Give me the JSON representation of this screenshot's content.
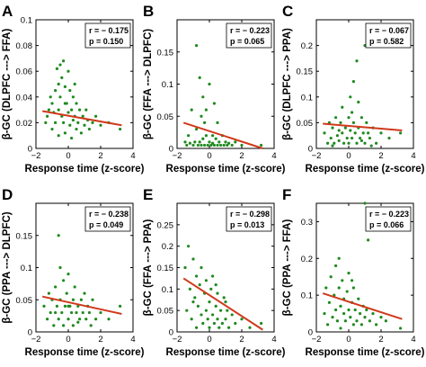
{
  "colors": {
    "points": "#1f8a1f",
    "fit_line": "#d0391c",
    "axes": "#000000"
  },
  "chart_data": [
    {
      "type": "scatter",
      "panel": "A",
      "xlabel": "Response time (z-score)",
      "ylabel": "β-GC (DLPFC ---> FFA)",
      "xlim": [
        -2,
        4
      ],
      "ylim": [
        0,
        0.1
      ],
      "xticks": [
        -2,
        0,
        2,
        4
      ],
      "yticks": [
        0,
        0.02,
        0.04,
        0.06,
        0.08,
        0.1
      ],
      "stats": {
        "r": "r = − 0.175",
        "p": "p = 0.150"
      },
      "fit": {
        "x": [
          -1.6,
          3.3
        ],
        "y": [
          0.029,
          0.018
        ]
      },
      "points": [
        [
          -1.4,
          0.02
        ],
        [
          -1.3,
          0.025
        ],
        [
          -1.2,
          0.03
        ],
        [
          -1.1,
          0.04
        ],
        [
          -1.0,
          0.035
        ],
        [
          -1.0,
          0.015
        ],
        [
          -0.9,
          0.028
        ],
        [
          -0.8,
          0.045
        ],
        [
          -0.8,
          0.02
        ],
        [
          -0.7,
          0.062
        ],
        [
          -0.6,
          0.05
        ],
        [
          -0.6,
          0.03
        ],
        [
          -0.5,
          0.065
        ],
        [
          -0.5,
          0.04
        ],
        [
          -0.4,
          0.055
        ],
        [
          -0.4,
          0.025
        ],
        [
          -0.3,
          0.068
        ],
        [
          -0.3,
          0.02
        ],
        [
          -0.2,
          0.048
        ],
        [
          -0.2,
          0.012
        ],
        [
          -0.1,
          0.035
        ],
        [
          0.0,
          0.06
        ],
        [
          0.0,
          0.028
        ],
        [
          0.1,
          0.045
        ],
        [
          0.1,
          0.018
        ],
        [
          0.2,
          0.03
        ],
        [
          0.2,
          0.008
        ],
        [
          0.3,
          0.04
        ],
        [
          0.3,
          0.022
        ],
        [
          0.4,
          0.025
        ],
        [
          0.5,
          0.015
        ],
        [
          0.5,
          0.035
        ],
        [
          0.6,
          0.02
        ],
        [
          0.7,
          0.03
        ],
        [
          0.8,
          0.012
        ],
        [
          0.9,
          0.025
        ],
        [
          1.0,
          0.018
        ],
        [
          1.1,
          0.03
        ],
        [
          1.2,
          0.022
        ],
        [
          1.3,
          0.015
        ],
        [
          1.5,
          0.02
        ],
        [
          1.7,
          0.025
        ],
        [
          2.0,
          0.018
        ],
        [
          2.5,
          0.02
        ],
        [
          3.2,
          0.015
        ],
        [
          -0.6,
          0.01
        ],
        [
          -0.2,
          0.035
        ],
        [
          0.4,
          0.05
        ]
      ]
    },
    {
      "type": "scatter",
      "panel": "B",
      "xlabel": "Response time (z-score)",
      "ylabel": "β-GC (FFA ---> DLPFC)",
      "xlim": [
        -2,
        4
      ],
      "ylim": [
        0,
        0.2
      ],
      "xticks": [
        -2,
        0,
        2,
        4
      ],
      "yticks": [
        0,
        0.05,
        0.1,
        0.15
      ],
      "stats": {
        "r": "r = − 0.223",
        "p": "p = 0.065"
      },
      "fit": {
        "x": [
          -1.6,
          3.3
        ],
        "y": [
          0.04,
          0.0
        ]
      },
      "points": [
        [
          -1.5,
          0.01
        ],
        [
          -1.4,
          0.005
        ],
        [
          -1.3,
          0.02
        ],
        [
          -1.2,
          0.008
        ],
        [
          -1.1,
          0.06
        ],
        [
          -1.0,
          0.005
        ],
        [
          -0.9,
          0.01
        ],
        [
          -0.8,
          0.16
        ],
        [
          -0.8,
          0.03
        ],
        [
          -0.7,
          0.005
        ],
        [
          -0.6,
          0.11
        ],
        [
          -0.6,
          0.01
        ],
        [
          -0.5,
          0.05
        ],
        [
          -0.5,
          0.005
        ],
        [
          -0.4,
          0.08
        ],
        [
          -0.4,
          0.015
        ],
        [
          -0.3,
          0.005
        ],
        [
          -0.2,
          0.02
        ],
        [
          -0.2,
          0.06
        ],
        [
          -0.1,
          0.005
        ],
        [
          0.0,
          0.01
        ],
        [
          0.0,
          0.1
        ],
        [
          0.1,
          0.005
        ],
        [
          0.2,
          0.02
        ],
        [
          0.2,
          0.008
        ],
        [
          0.3,
          0.005
        ],
        [
          0.4,
          0.015
        ],
        [
          0.5,
          0.005
        ],
        [
          0.5,
          0.04
        ],
        [
          0.6,
          0.01
        ],
        [
          0.7,
          0.005
        ],
        [
          0.8,
          0.02
        ],
        [
          0.9,
          0.005
        ],
        [
          1.0,
          0.01
        ],
        [
          1.1,
          0.005
        ],
        [
          1.2,
          0.008
        ],
        [
          1.4,
          0.005
        ],
        [
          1.6,
          0.01
        ],
        [
          2.0,
          0.005
        ],
        [
          3.2,
          0.005
        ],
        [
          -0.3,
          0.04
        ],
        [
          0.3,
          0.07
        ]
      ]
    },
    {
      "type": "scatter",
      "panel": "C",
      "xlabel": "Response time (z-score)",
      "ylabel": "β-GC (DLPFC ---> PPA)",
      "xlim": [
        -2,
        4
      ],
      "ylim": [
        0,
        0.25
      ],
      "xticks": [
        -2,
        0,
        2,
        4
      ],
      "yticks": [
        0,
        0.05,
        0.1,
        0.15,
        0.2
      ],
      "stats": {
        "r": "r = − 0.067",
        "p": "p = 0.582"
      },
      "fit": {
        "x": [
          -1.6,
          3.3
        ],
        "y": [
          0.048,
          0.035
        ]
      },
      "points": [
        [
          -1.5,
          0.03
        ],
        [
          -1.3,
          0.01
        ],
        [
          -1.2,
          0.05
        ],
        [
          -1.1,
          0.02
        ],
        [
          -1.0,
          0.04
        ],
        [
          -0.9,
          0.01
        ],
        [
          -0.8,
          0.06
        ],
        [
          -0.7,
          0.025
        ],
        [
          -0.6,
          0.015
        ],
        [
          -0.5,
          0.05
        ],
        [
          -0.4,
          0.03
        ],
        [
          -0.4,
          0.08
        ],
        [
          -0.3,
          0.01
        ],
        [
          -0.2,
          0.04
        ],
        [
          -0.1,
          0.02
        ],
        [
          0.0,
          0.06
        ],
        [
          0.0,
          0.01
        ],
        [
          0.1,
          0.035
        ],
        [
          0.1,
          0.1
        ],
        [
          0.2,
          0.02
        ],
        [
          0.3,
          0.05
        ],
        [
          0.3,
          0.13
        ],
        [
          0.4,
          0.03
        ],
        [
          0.5,
          0.01
        ],
        [
          0.5,
          0.17
        ],
        [
          0.6,
          0.04
        ],
        [
          0.7,
          0.02
        ],
        [
          0.8,
          0.06
        ],
        [
          0.9,
          0.03
        ],
        [
          1.0,
          0.01
        ],
        [
          1.0,
          0.2
        ],
        [
          1.1,
          0.05
        ],
        [
          1.2,
          0.03
        ],
        [
          1.3,
          0.02
        ],
        [
          1.5,
          0.04
        ],
        [
          1.7,
          0.01
        ],
        [
          2.0,
          0.03
        ],
        [
          2.5,
          0.02
        ],
        [
          3.2,
          0.03
        ],
        [
          -0.6,
          0.035
        ],
        [
          0.2,
          0.07
        ],
        [
          0.8,
          0.015
        ],
        [
          1.4,
          0.005
        ],
        [
          -1.0,
          0.005
        ],
        [
          0.6,
          0.09
        ]
      ]
    },
    {
      "type": "scatter",
      "panel": "D",
      "xlabel": "Response time (z-score)",
      "ylabel": "β-GC (PPA ---> DLPFC)",
      "xlim": [
        -2,
        4
      ],
      "ylim": [
        0,
        0.2
      ],
      "xticks": [
        -2,
        0,
        2,
        4
      ],
      "yticks": [
        0,
        0.05,
        0.1,
        0.15
      ],
      "stats": {
        "r": "r = − 0.238",
        "p": "p = 0.049"
      },
      "fit": {
        "x": [
          -1.6,
          3.3
        ],
        "y": [
          0.055,
          0.028
        ]
      },
      "points": [
        [
          -1.5,
          0.04
        ],
        [
          -1.3,
          0.02
        ],
        [
          -1.2,
          0.06
        ],
        [
          -1.1,
          0.03
        ],
        [
          -1.0,
          0.05
        ],
        [
          -0.9,
          0.01
        ],
        [
          -0.8,
          0.07
        ],
        [
          -0.7,
          0.04
        ],
        [
          -0.6,
          0.15
        ],
        [
          -0.6,
          0.02
        ],
        [
          -0.5,
          0.1
        ],
        [
          -0.5,
          0.05
        ],
        [
          -0.4,
          0.03
        ],
        [
          -0.3,
          0.08
        ],
        [
          -0.3,
          0.01
        ],
        [
          -0.2,
          0.04
        ],
        [
          -0.1,
          0.06
        ],
        [
          0.0,
          0.02
        ],
        [
          0.0,
          0.09
        ],
        [
          0.1,
          0.04
        ],
        [
          0.2,
          0.03
        ],
        [
          0.3,
          0.05
        ],
        [
          0.3,
          0.01
        ],
        [
          0.4,
          0.07
        ],
        [
          0.5,
          0.03
        ],
        [
          0.6,
          0.04
        ],
        [
          0.7,
          0.02
        ],
        [
          0.8,
          0.05
        ],
        [
          0.9,
          0.03
        ],
        [
          1.0,
          0.06
        ],
        [
          1.1,
          0.02
        ],
        [
          1.2,
          0.04
        ],
        [
          1.3,
          0.03
        ],
        [
          1.5,
          0.05
        ],
        [
          1.7,
          0.02
        ],
        [
          2.0,
          0.03
        ],
        [
          2.5,
          0.02
        ],
        [
          3.2,
          0.04
        ],
        [
          -0.8,
          0.03
        ],
        [
          0.0,
          0.04
        ],
        [
          0.6,
          0.015
        ],
        [
          1.4,
          0.01
        ]
      ]
    },
    {
      "type": "scatter",
      "panel": "E",
      "xlabel": "Response time (z-score)",
      "ylabel": "β-GC (FFA ---> PPA)",
      "xlim": [
        -2,
        4
      ],
      "ylim": [
        0,
        0.3
      ],
      "xticks": [
        -2,
        0,
        2,
        4
      ],
      "yticks": [
        0,
        0.05,
        0.1,
        0.15,
        0.2,
        0.25
      ],
      "stats": {
        "r": "r = − 0.298",
        "p": "p = 0.013"
      },
      "fit": {
        "x": [
          -1.6,
          3.3
        ],
        "y": [
          0.125,
          0.005
        ]
      },
      "points": [
        [
          -1.5,
          0.15
        ],
        [
          -1.4,
          0.05
        ],
        [
          -1.3,
          0.2
        ],
        [
          -1.2,
          0.1
        ],
        [
          -1.1,
          0.03
        ],
        [
          -1.0,
          0.17
        ],
        [
          -0.9,
          0.08
        ],
        [
          -0.8,
          0.13
        ],
        [
          -0.8,
          0.01
        ],
        [
          -0.7,
          0.06
        ],
        [
          -0.6,
          0.11
        ],
        [
          -0.5,
          0.04
        ],
        [
          -0.5,
          0.15
        ],
        [
          -0.4,
          0.02
        ],
        [
          -0.3,
          0.09
        ],
        [
          -0.2,
          0.12
        ],
        [
          -0.2,
          0.05
        ],
        [
          -0.1,
          0.03
        ],
        [
          0.0,
          0.07
        ],
        [
          0.0,
          0.01
        ],
        [
          0.1,
          0.1
        ],
        [
          0.2,
          0.04
        ],
        [
          0.2,
          0.13
        ],
        [
          0.3,
          0.02
        ],
        [
          0.4,
          0.06
        ],
        [
          0.5,
          0.03
        ],
        [
          0.5,
          0.09
        ],
        [
          0.6,
          0.01
        ],
        [
          0.7,
          0.05
        ],
        [
          0.8,
          0.02
        ],
        [
          0.9,
          0.08
        ],
        [
          1.0,
          0.03
        ],
        [
          1.1,
          0.05
        ],
        [
          1.2,
          0.01
        ],
        [
          1.4,
          0.04
        ],
        [
          1.6,
          0.02
        ],
        [
          2.0,
          0.03
        ],
        [
          2.5,
          0.01
        ],
        [
          3.2,
          0.02
        ],
        [
          -1.0,
          0.07
        ],
        [
          0.4,
          0.11
        ],
        [
          1.0,
          0.07
        ]
      ]
    },
    {
      "type": "scatter",
      "panel": "F",
      "xlabel": "Response time (z-score)",
      "ylabel": "β-GC (PPA ---> FFA)",
      "xlim": [
        -2,
        4
      ],
      "ylim": [
        0,
        0.35
      ],
      "xticks": [
        -2,
        0,
        2,
        4
      ],
      "yticks": [
        0,
        0.1,
        0.2,
        0.3
      ],
      "stats": {
        "r": "r = − 0.223",
        "p": "p = 0.066"
      },
      "fit": {
        "x": [
          -1.6,
          3.3
        ],
        "y": [
          0.105,
          0.035
        ]
      },
      "points": [
        [
          -1.5,
          0.05
        ],
        [
          -1.4,
          0.12
        ],
        [
          -1.3,
          0.02
        ],
        [
          -1.2,
          0.08
        ],
        [
          -1.1,
          0.15
        ],
        [
          -1.0,
          0.04
        ],
        [
          -0.9,
          0.1
        ],
        [
          -0.8,
          0.06
        ],
        [
          -0.8,
          0.18
        ],
        [
          -0.7,
          0.03
        ],
        [
          -0.6,
          0.12
        ],
        [
          -0.5,
          0.07
        ],
        [
          -0.5,
          0.01
        ],
        [
          -0.4,
          0.14
        ],
        [
          -0.3,
          0.05
        ],
        [
          -0.3,
          0.09
        ],
        [
          -0.2,
          0.03
        ],
        [
          -0.1,
          0.11
        ],
        [
          0.0,
          0.06
        ],
        [
          0.0,
          0.16
        ],
        [
          0.1,
          0.04
        ],
        [
          0.2,
          0.08
        ],
        [
          0.3,
          0.02
        ],
        [
          0.3,
          0.12
        ],
        [
          0.4,
          0.06
        ],
        [
          0.5,
          0.03
        ],
        [
          0.6,
          0.09
        ],
        [
          0.7,
          0.05
        ],
        [
          0.8,
          0.02
        ],
        [
          0.9,
          0.07
        ],
        [
          1.0,
          0.04
        ],
        [
          1.0,
          0.35
        ],
        [
          1.1,
          0.06
        ],
        [
          1.3,
          0.03
        ],
        [
          1.5,
          0.05
        ],
        [
          1.7,
          0.02
        ],
        [
          2.0,
          0.04
        ],
        [
          2.3,
          0.03
        ],
        [
          3.2,
          0.01
        ],
        [
          -0.6,
          0.2
        ],
        [
          0.2,
          0.14
        ],
        [
          1.2,
          0.25
        ]
      ]
    }
  ]
}
